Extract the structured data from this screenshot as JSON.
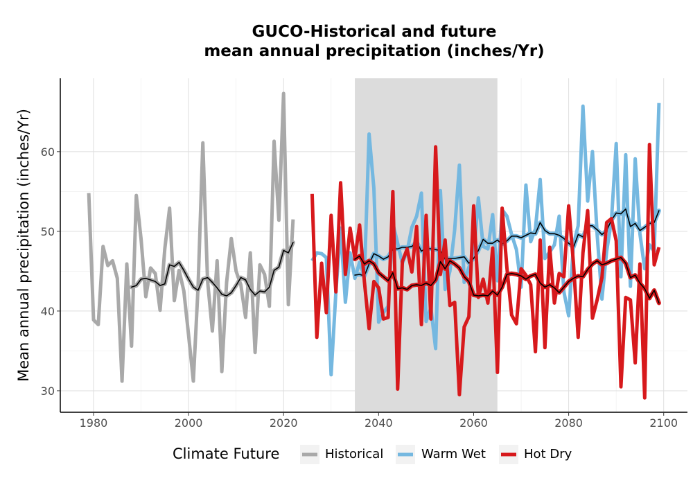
{
  "chart_data": {
    "type": "line",
    "title_line1": "GUCO-Historical and future",
    "title_line2": "mean annual precipitation (inches/Yr)",
    "xlabel": "",
    "ylabel": "Mean annual precipitation (inches/Yr)",
    "xlim": [
      1973,
      2105
    ],
    "ylim": [
      27.3,
      69.2
    ],
    "x_ticks": [
      1980,
      2000,
      2020,
      2040,
      2060,
      2080,
      2100
    ],
    "y_ticks": [
      30,
      40,
      50,
      60
    ],
    "grid": true,
    "shaded_period": [
      2035,
      2065
    ],
    "legend": {
      "title": "Climate Future",
      "position": "bottom",
      "entries": [
        {
          "label": "Historical",
          "color": "#a9a9a9"
        },
        {
          "label": "Warm Wet",
          "color": "#75b8e0"
        },
        {
          "label": "Hot Dry",
          "color": "#d7191c"
        }
      ]
    },
    "series": [
      {
        "name": "Historical",
        "color": "#a9a9a9",
        "x": [
          1979,
          1980,
          1981,
          1982,
          1983,
          1984,
          1985,
          1986,
          1987,
          1988,
          1989,
          1990,
          1991,
          1992,
          1993,
          1994,
          1995,
          1996,
          1997,
          1998,
          1999,
          2000,
          2001,
          2002,
          2003,
          2004,
          2005,
          2006,
          2007,
          2008,
          2009,
          2010,
          2011,
          2012,
          2013,
          2014,
          2015,
          2016,
          2017,
          2018,
          2019,
          2020,
          2021,
          2022
        ],
        "y": [
          54.8,
          38.9,
          38.3,
          48.1,
          45.7,
          46.3,
          44.1,
          31.2,
          45.9,
          35.6,
          54.5,
          49.0,
          41.8,
          45.4,
          44.7,
          40.1,
          47.8,
          52.9,
          41.3,
          45.1,
          42.5,
          37.0,
          31.2,
          43.0,
          61.1,
          43.8,
          37.5,
          46.3,
          32.4,
          43.6,
          49.1,
          45.0,
          43.3,
          39.2,
          47.3,
          34.8,
          45.8,
          44.6,
          40.6,
          61.3,
          51.4,
          67.3,
          40.8,
          51.5
        ]
      },
      {
        "name": "Historical rolling mean",
        "color": "#000000",
        "x": [
          1988,
          1989,
          1990,
          1991,
          1992,
          1993,
          1994,
          1995,
          1996,
          1997,
          1998,
          1999,
          2000,
          2001,
          2002,
          2003,
          2004,
          2005,
          2006,
          2007,
          2008,
          2009,
          2010,
          2011,
          2012,
          2013,
          2014,
          2015,
          2016,
          2017,
          2018,
          2019,
          2020,
          2021,
          2022
        ],
        "y": [
          43.0,
          43.2,
          44.0,
          44.1,
          43.9,
          43.7,
          43.2,
          43.4,
          45.8,
          45.6,
          46.1,
          45.1,
          44.0,
          43.0,
          42.6,
          44.0,
          44.2,
          43.6,
          42.9,
          42.1,
          41.9,
          42.3,
          43.2,
          44.2,
          43.9,
          42.7,
          42.0,
          42.5,
          42.4,
          43.0,
          45.1,
          45.5,
          47.6,
          47.3,
          48.6
        ]
      },
      {
        "name": "Warm Wet",
        "color": "#75b8e0",
        "x": [
          2026,
          2027,
          2028,
          2029,
          2030,
          2031,
          2032,
          2033,
          2034,
          2035,
          2036,
          2037,
          2038,
          2039,
          2040,
          2041,
          2042,
          2043,
          2044,
          2045,
          2046,
          2047,
          2048,
          2049,
          2050,
          2051,
          2052,
          2053,
          2054,
          2055,
          2056,
          2057,
          2058,
          2059,
          2060,
          2061,
          2062,
          2063,
          2064,
          2065,
          2066,
          2067,
          2068,
          2069,
          2070,
          2071,
          2072,
          2073,
          2074,
          2075,
          2076,
          2077,
          2078,
          2079,
          2080,
          2081,
          2082,
          2083,
          2084,
          2085,
          2086,
          2087,
          2088,
          2089,
          2090,
          2091,
          2092,
          2093,
          2094,
          2095,
          2096,
          2097,
          2098,
          2099
        ],
        "y": [
          46.3,
          47.3,
          47.2,
          46.7,
          32.0,
          42.4,
          50.4,
          41.1,
          47.3,
          44.1,
          46.1,
          44.3,
          62.2,
          55.4,
          38.6,
          39.8,
          40.6,
          51.0,
          48.5,
          46.0,
          47.5,
          50.5,
          51.9,
          54.8,
          38.7,
          40.4,
          35.3,
          55.1,
          42.7,
          45.0,
          50.2,
          58.3,
          43.6,
          45.5,
          46.9,
          54.2,
          48.1,
          47.8,
          52.1,
          43.8,
          52.7,
          51.9,
          49.6,
          47.7,
          43.0,
          55.8,
          48.7,
          50.3,
          56.5,
          46.6,
          47.4,
          48.3,
          51.9,
          42.4,
          39.4,
          48.3,
          50.7,
          65.7,
          53.8,
          60.0,
          49.6,
          41.5,
          47.5,
          51.3,
          61.0,
          44.3,
          59.6,
          43.1,
          59.1,
          49.7,
          45.3,
          48.3,
          47.5,
          66.1
        ]
      },
      {
        "name": "Warm Wet rolling mean",
        "color": "#000000",
        "x": [
          2035,
          2036,
          2037,
          2038,
          2039,
          2040,
          2041,
          2042,
          2043,
          2044,
          2045,
          2046,
          2047,
          2048,
          2049,
          2050,
          2051,
          2052,
          2053,
          2054,
          2055,
          2056,
          2057,
          2058,
          2059,
          2060,
          2061,
          2062,
          2063,
          2064,
          2065,
          2066,
          2067,
          2068,
          2069,
          2070,
          2071,
          2072,
          2073,
          2074,
          2075,
          2076,
          2077,
          2078,
          2079,
          2080,
          2081,
          2082,
          2083,
          2084,
          2085,
          2086,
          2087,
          2088,
          2089,
          2090,
          2091,
          2092,
          2093,
          2094,
          2095,
          2096,
          2097,
          2098,
          2099
        ],
        "y": [
          44.5,
          44.6,
          44.4,
          45.9,
          47.2,
          46.9,
          46.5,
          46.8,
          47.8,
          47.8,
          48.0,
          48.0,
          48.1,
          48.7,
          47.5,
          47.9,
          47.8,
          47.7,
          47.6,
          46.5,
          46.6,
          46.6,
          46.7,
          46.8,
          46.0,
          46.6,
          47.6,
          49.0,
          48.5,
          48.5,
          48.9,
          48.4,
          48.8,
          49.4,
          49.4,
          49.2,
          49.5,
          49.8,
          49.7,
          51.1,
          50.1,
          49.7,
          49.7,
          49.5,
          49.1,
          48.5,
          48.0,
          49.6,
          49.3,
          50.7,
          50.7,
          50.2,
          49.6,
          50.1,
          51.4,
          52.3,
          52.2,
          52.8,
          50.6,
          51.0,
          50.1,
          50.5,
          51.0,
          51.1,
          52.6
        ]
      },
      {
        "name": "Hot Dry",
        "color": "#d7191c",
        "x": [
          2026,
          2027,
          2028,
          2029,
          2030,
          2031,
          2032,
          2033,
          2034,
          2035,
          2036,
          2037,
          2038,
          2039,
          2040,
          2041,
          2042,
          2043,
          2044,
          2045,
          2046,
          2047,
          2048,
          2049,
          2050,
          2051,
          2052,
          2053,
          2054,
          2055,
          2056,
          2057,
          2058,
          2059,
          2060,
          2061,
          2062,
          2063,
          2064,
          2065,
          2066,
          2067,
          2068,
          2069,
          2070,
          2071,
          2072,
          2073,
          2074,
          2075,
          2076,
          2077,
          2078,
          2079,
          2080,
          2081,
          2082,
          2083,
          2084,
          2085,
          2086,
          2087,
          2088,
          2089,
          2090,
          2091,
          2092,
          2093,
          2094,
          2095,
          2096,
          2097,
          2098,
          2099
        ],
        "y": [
          54.7,
          36.7,
          46.0,
          39.8,
          52.0,
          42.4,
          56.1,
          44.6,
          50.4,
          46.6,
          50.8,
          43.7,
          37.8,
          43.7,
          42.9,
          39.0,
          39.2,
          55.0,
          30.2,
          46.2,
          47.8,
          44.9,
          50.6,
          38.3,
          52.0,
          39.0,
          60.6,
          44.6,
          48.9,
          40.7,
          41.1,
          29.5,
          38.0,
          39.3,
          53.2,
          41.7,
          44.0,
          41.0,
          47.9,
          32.3,
          52.9,
          45.4,
          39.5,
          38.4,
          45.3,
          44.5,
          43.3,
          34.9,
          48.9,
          35.4,
          48.0,
          41.0,
          44.7,
          44.3,
          53.2,
          46.0,
          36.7,
          47.3,
          52.6,
          39.1,
          41.4,
          44.2,
          51.1,
          51.6,
          48.8,
          30.5,
          41.7,
          41.4,
          33.5,
          45.9,
          29.1,
          60.9,
          45.8,
          48.0
        ]
      },
      {
        "name": "Hot Dry rolling mean",
        "color": "#000000",
        "x": [
          2035,
          2036,
          2037,
          2038,
          2039,
          2040,
          2041,
          2042,
          2043,
          2044,
          2045,
          2046,
          2047,
          2048,
          2049,
          2050,
          2051,
          2052,
          2053,
          2054,
          2055,
          2056,
          2057,
          2058,
          2059,
          2060,
          2061,
          2062,
          2063,
          2064,
          2065,
          2066,
          2067,
          2068,
          2069,
          2070,
          2071,
          2072,
          2073,
          2074,
          2075,
          2076,
          2077,
          2078,
          2079,
          2080,
          2081,
          2082,
          2083,
          2084,
          2085,
          2086,
          2087,
          2088,
          2089,
          2090,
          2091,
          2092,
          2093,
          2094,
          2095,
          2096,
          2097,
          2098,
          2099
        ],
        "y": [
          46.5,
          46.9,
          45.9,
          46.3,
          45.9,
          44.8,
          44.3,
          43.8,
          44.8,
          42.8,
          42.9,
          42.7,
          43.2,
          43.3,
          43.2,
          43.5,
          43.2,
          43.9,
          46.2,
          45.3,
          46.3,
          45.9,
          45.4,
          44.3,
          43.7,
          42.0,
          41.9,
          42.0,
          41.9,
          42.5,
          42.0,
          43.0,
          44.6,
          44.7,
          44.6,
          44.4,
          44.0,
          44.4,
          44.6,
          43.5,
          43.0,
          43.3,
          42.9,
          42.3,
          43.0,
          43.7,
          44.1,
          44.4,
          44.3,
          45.2,
          45.9,
          46.3,
          45.8,
          46.0,
          46.3,
          46.5,
          46.7,
          46.0,
          44.2,
          44.5,
          43.5,
          42.8,
          41.6,
          42.6,
          41.0
        ]
      }
    ]
  }
}
